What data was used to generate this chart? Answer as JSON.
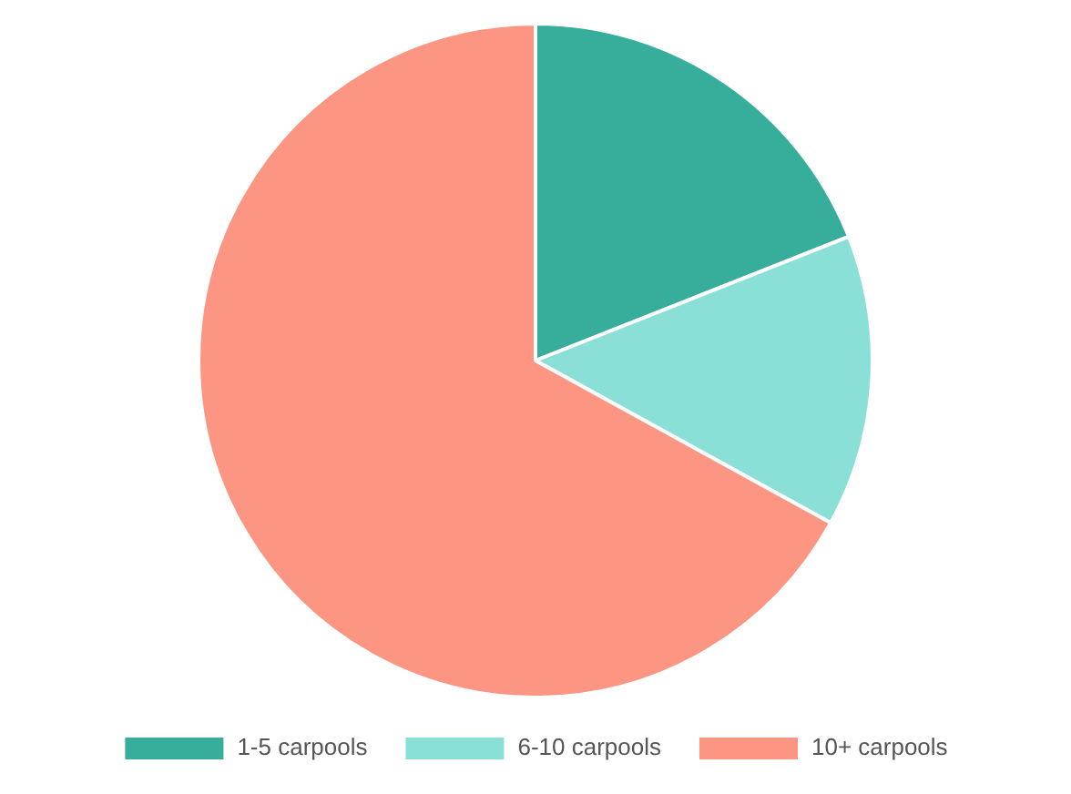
{
  "chart_data": {
    "type": "pie",
    "categories": [
      "1-5 carpools",
      "6-10 carpools",
      "10+ carpools"
    ],
    "values": [
      19,
      14,
      67
    ],
    "colors": [
      "#36ae9b",
      "#8adfd6",
      "#fc9682"
    ],
    "legend": "bottom"
  }
}
